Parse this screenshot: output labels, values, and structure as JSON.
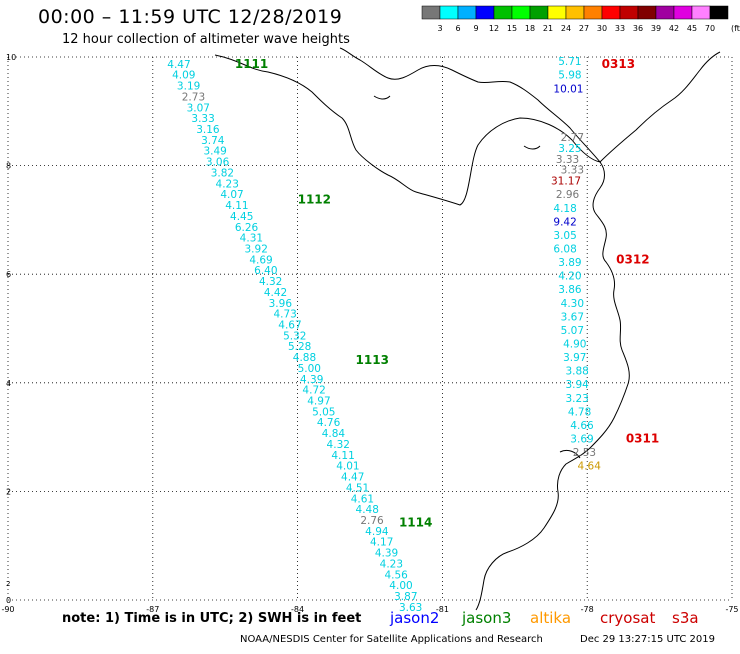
{
  "title": "00:00 – 11:59 UTC 12/28/2019",
  "subtitle": "12 hour collection of altimeter wave heights",
  "note": "note:  1) Time is in UTC;  2) SWH is in feet",
  "footer_left": "NOAA/NESDIS Center for Satellite Applications and Research",
  "footer_right": "Dec 29 13:27:15 UTC 2019",
  "color_scale": {
    "unit": "(ft)",
    "colors": [
      "#777777",
      "#00ffff",
      "#00b0ff",
      "#0000ff",
      "#00c000",
      "#00ff00",
      "#00a000",
      "#ffff00",
      "#ffc000",
      "#ff8000",
      "#ff0000",
      "#c00000",
      "#800000",
      "#a000a0",
      "#e000e0",
      "#ff80ff",
      "#000000"
    ],
    "labels": [
      "3",
      "6",
      "9",
      "12",
      "15",
      "18",
      "21",
      "24",
      "27",
      "30",
      "33",
      "36",
      "39",
      "42",
      "45",
      "70"
    ]
  },
  "missions": [
    {
      "name": "jason2",
      "color": "#0000ff"
    },
    {
      "name": "jason3",
      "color": "#008000"
    },
    {
      "name": "altika",
      "color": "#ff9900"
    },
    {
      "name": "cryosat",
      "color": "#cc0000"
    },
    {
      "name": "s3a",
      "color": "#cc0000"
    }
  ],
  "axes": {
    "x_ticks": [
      -90,
      -87,
      -84,
      -81,
      -78,
      -75
    ],
    "x_tick_labels": [
      "-90",
      "-87",
      "-84",
      "-81",
      "-78",
      "-75"
    ],
    "y_ticks": [
      0,
      2,
      4,
      6,
      8,
      10
    ],
    "y_tick_labels": [
      "0",
      "2",
      "4",
      "6",
      "8",
      "10"
    ],
    "extra_y_tick_label": "2",
    "xlim": [
      -90,
      -75
    ],
    "ylim": [
      0,
      10
    ],
    "grid": true
  },
  "tracks": [
    {
      "pass_labels": [
        {
          "text": "1111",
          "lon": -85.3,
          "lat": 9.8
        },
        {
          "text": "1112",
          "lon": -84.0,
          "lat": 7.3
        },
        {
          "text": "1113",
          "lon": -82.8,
          "lat": 4.35
        },
        {
          "text": "1114",
          "lon": -81.9,
          "lat": 1.35
        }
      ],
      "pass_color": "#008000",
      "values": [
        {
          "text": "4.47",
          "lon": -86.7,
          "lat": 9.8,
          "c": "#00d0e0"
        },
        {
          "text": "4.09",
          "lon": -86.6,
          "lat": 9.6,
          "c": "#00d0e0"
        },
        {
          "text": "3.19",
          "lon": -86.5,
          "lat": 9.4,
          "c": "#00d0e0"
        },
        {
          "text": "2.73",
          "lon": -86.4,
          "lat": 9.2,
          "c": "#777777"
        },
        {
          "text": "3.07",
          "lon": -86.3,
          "lat": 9.0,
          "c": "#00d0e0"
        },
        {
          "text": "3.33",
          "lon": -86.2,
          "lat": 8.8,
          "c": "#00d0e0"
        },
        {
          "text": "3.16",
          "lon": -86.1,
          "lat": 8.6,
          "c": "#00d0e0"
        },
        {
          "text": "3.74",
          "lon": -86.0,
          "lat": 8.4,
          "c": "#00d0e0"
        },
        {
          "text": "3.49",
          "lon": -85.95,
          "lat": 8.2,
          "c": "#00d0e0"
        },
        {
          "text": "3.06",
          "lon": -85.9,
          "lat": 8.0,
          "c": "#00d0e0"
        },
        {
          "text": "3.82",
          "lon": -85.8,
          "lat": 7.8,
          "c": "#00d0e0"
        },
        {
          "text": "4.23",
          "lon": -85.7,
          "lat": 7.6,
          "c": "#00d0e0"
        },
        {
          "text": "4.07",
          "lon": -85.6,
          "lat": 7.4,
          "c": "#00d0e0"
        },
        {
          "text": "4.11",
          "lon": -85.5,
          "lat": 7.2,
          "c": "#00d0e0"
        },
        {
          "text": "4.45",
          "lon": -85.4,
          "lat": 7.0,
          "c": "#00d0e0"
        },
        {
          "text": "6.26",
          "lon": -85.3,
          "lat": 6.8,
          "c": "#00d0e0"
        },
        {
          "text": "4.31",
          "lon": -85.2,
          "lat": 6.6,
          "c": "#00d0e0"
        },
        {
          "text": "3.92",
          "lon": -85.1,
          "lat": 6.4,
          "c": "#00d0e0"
        },
        {
          "text": "4.69",
          "lon": -85.0,
          "lat": 6.2,
          "c": "#00d0e0"
        },
        {
          "text": "6.40",
          "lon": -84.9,
          "lat": 6.0,
          "c": "#00d0e0"
        },
        {
          "text": "4.32",
          "lon": -84.8,
          "lat": 5.8,
          "c": "#00d0e0"
        },
        {
          "text": "4.42",
          "lon": -84.7,
          "lat": 5.6,
          "c": "#00d0e0"
        },
        {
          "text": "3.96",
          "lon": -84.6,
          "lat": 5.4,
          "c": "#00d0e0"
        },
        {
          "text": "4.73",
          "lon": -84.5,
          "lat": 5.2,
          "c": "#00d0e0"
        },
        {
          "text": "4.67",
          "lon": -84.4,
          "lat": 5.0,
          "c": "#00d0e0"
        },
        {
          "text": "5.32",
          "lon": -84.3,
          "lat": 4.8,
          "c": "#00d0e0"
        },
        {
          "text": "5.28",
          "lon": -84.2,
          "lat": 4.6,
          "c": "#00d0e0"
        },
        {
          "text": "4.88",
          "lon": -84.1,
          "lat": 4.4,
          "c": "#00d0e0"
        },
        {
          "text": "5.00",
          "lon": -84.0,
          "lat": 4.2,
          "c": "#00d0e0"
        },
        {
          "text": "4.39",
          "lon": -83.95,
          "lat": 4.0,
          "c": "#00d0e0"
        },
        {
          "text": "4.72",
          "lon": -83.9,
          "lat": 3.8,
          "c": "#00d0e0"
        },
        {
          "text": "4.97",
          "lon": -83.8,
          "lat": 3.6,
          "c": "#00d0e0"
        },
        {
          "text": "5.05",
          "lon": -83.7,
          "lat": 3.4,
          "c": "#00d0e0"
        },
        {
          "text": "4.76",
          "lon": -83.6,
          "lat": 3.2,
          "c": "#00d0e0"
        },
        {
          "text": "4.84",
          "lon": -83.5,
          "lat": 3.0,
          "c": "#00d0e0"
        },
        {
          "text": "4.32",
          "lon": -83.4,
          "lat": 2.8,
          "c": "#00d0e0"
        },
        {
          "text": "4.11",
          "lon": -83.3,
          "lat": 2.6,
          "c": "#00d0e0"
        },
        {
          "text": "4.01",
          "lon": -83.2,
          "lat": 2.4,
          "c": "#00d0e0"
        },
        {
          "text": "4.47",
          "lon": -83.1,
          "lat": 2.2,
          "c": "#00d0e0"
        },
        {
          "text": "4.51",
          "lon": -83.0,
          "lat": 2.0,
          "c": "#00d0e0"
        },
        {
          "text": "4.61",
          "lon": -82.9,
          "lat": 1.8,
          "c": "#00d0e0"
        },
        {
          "text": "4.48",
          "lon": -82.8,
          "lat": 1.6,
          "c": "#00d0e0"
        },
        {
          "text": "2.76",
          "lon": -82.7,
          "lat": 1.4,
          "c": "#777777"
        },
        {
          "text": "4.94",
          "lon": -82.6,
          "lat": 1.2,
          "c": "#00d0e0"
        },
        {
          "text": "4.17",
          "lon": -82.5,
          "lat": 1.0,
          "c": "#00d0e0"
        },
        {
          "text": "4.39",
          "lon": -82.4,
          "lat": 0.8,
          "c": "#00d0e0"
        },
        {
          "text": "4.23",
          "lon": -82.3,
          "lat": 0.6,
          "c": "#00d0e0"
        },
        {
          "text": "4.56",
          "lon": -82.2,
          "lat": 0.4,
          "c": "#00d0e0"
        },
        {
          "text": "4.00",
          "lon": -82.1,
          "lat": 0.2,
          "c": "#00d0e0"
        },
        {
          "text": "3.87",
          "lon": -82.0,
          "lat": 0.0,
          "c": "#00d0e0"
        },
        {
          "text": "3.63",
          "lon": -81.9,
          "lat": -0.2,
          "c": "#00d0e0"
        }
      ]
    },
    {
      "pass_labels": [
        {
          "text": "0313",
          "lon": -77.7,
          "lat": 9.8
        },
        {
          "text": "0312",
          "lon": -77.4,
          "lat": 6.2
        },
        {
          "text": "0311",
          "lon": -77.2,
          "lat": 2.9
        }
      ],
      "pass_color": "#dd0000",
      "values": [
        {
          "text": "5.71",
          "lon": -78.6,
          "lat": 9.85,
          "c": "#00d0e0"
        },
        {
          "text": "5.98",
          "lon": -78.6,
          "lat": 9.6,
          "c": "#00d0e0"
        },
        {
          "text": "10.01",
          "lon": -78.7,
          "lat": 9.35,
          "c": "#0000cc"
        },
        {
          "text": "2.77",
          "lon": -78.55,
          "lat": 8.45,
          "c": "#777777"
        },
        {
          "text": "3.25",
          "lon": -78.6,
          "lat": 8.25,
          "c": "#00d0e0"
        },
        {
          "text": "3.33",
          "lon": -78.65,
          "lat": 8.05,
          "c": "#777777"
        },
        {
          "text": "3.33",
          "lon": -78.55,
          "lat": 7.85,
          "c": "#777777"
        },
        {
          "text": "31.17",
          "lon": -78.75,
          "lat": 7.65,
          "c": "#aa0000"
        },
        {
          "text": "2.96",
          "lon": -78.65,
          "lat": 7.4,
          "c": "#777777"
        },
        {
          "text": "4.18",
          "lon": -78.7,
          "lat": 7.15,
          "c": "#00d0e0"
        },
        {
          "text": "9.42",
          "lon": -78.7,
          "lat": 6.9,
          "c": "#0000cc"
        },
        {
          "text": "3.05",
          "lon": -78.7,
          "lat": 6.65,
          "c": "#00d0e0"
        },
        {
          "text": "6.08",
          "lon": -78.7,
          "lat": 6.4,
          "c": "#00d0e0"
        },
        {
          "text": "3.89",
          "lon": -78.6,
          "lat": 6.15,
          "c": "#00d0e0"
        },
        {
          "text": "4.20",
          "lon": -78.6,
          "lat": 5.9,
          "c": "#00d0e0"
        },
        {
          "text": "3.86",
          "lon": -78.6,
          "lat": 5.65,
          "c": "#00d0e0"
        },
        {
          "text": "4.30",
          "lon": -78.55,
          "lat": 5.4,
          "c": "#00d0e0"
        },
        {
          "text": "3.67",
          "lon": -78.55,
          "lat": 5.15,
          "c": "#00d0e0"
        },
        {
          "text": "5.07",
          "lon": -78.55,
          "lat": 4.9,
          "c": "#00d0e0"
        },
        {
          "text": "4.90",
          "lon": -78.5,
          "lat": 4.65,
          "c": "#00d0e0"
        },
        {
          "text": "3.97",
          "lon": -78.5,
          "lat": 4.4,
          "c": "#00d0e0"
        },
        {
          "text": "3.88",
          "lon": -78.45,
          "lat": 4.15,
          "c": "#00d0e0"
        },
        {
          "text": "3.94",
          "lon": -78.45,
          "lat": 3.9,
          "c": "#00d0e0"
        },
        {
          "text": "3.23",
          "lon": -78.45,
          "lat": 3.65,
          "c": "#00d0e0"
        },
        {
          "text": "4.78",
          "lon": -78.4,
          "lat": 3.4,
          "c": "#00d0e0"
        },
        {
          "text": "4.66",
          "lon": -78.35,
          "lat": 3.15,
          "c": "#00d0e0"
        },
        {
          "text": "3.69",
          "lon": -78.35,
          "lat": 2.9,
          "c": "#00d0e0"
        },
        {
          "text": "2.53",
          "lon": -78.3,
          "lat": 2.65,
          "c": "#777777"
        },
        {
          "text": "4.64",
          "lon": -78.2,
          "lat": 2.4,
          "c": "#cc9900"
        }
      ]
    }
  ]
}
